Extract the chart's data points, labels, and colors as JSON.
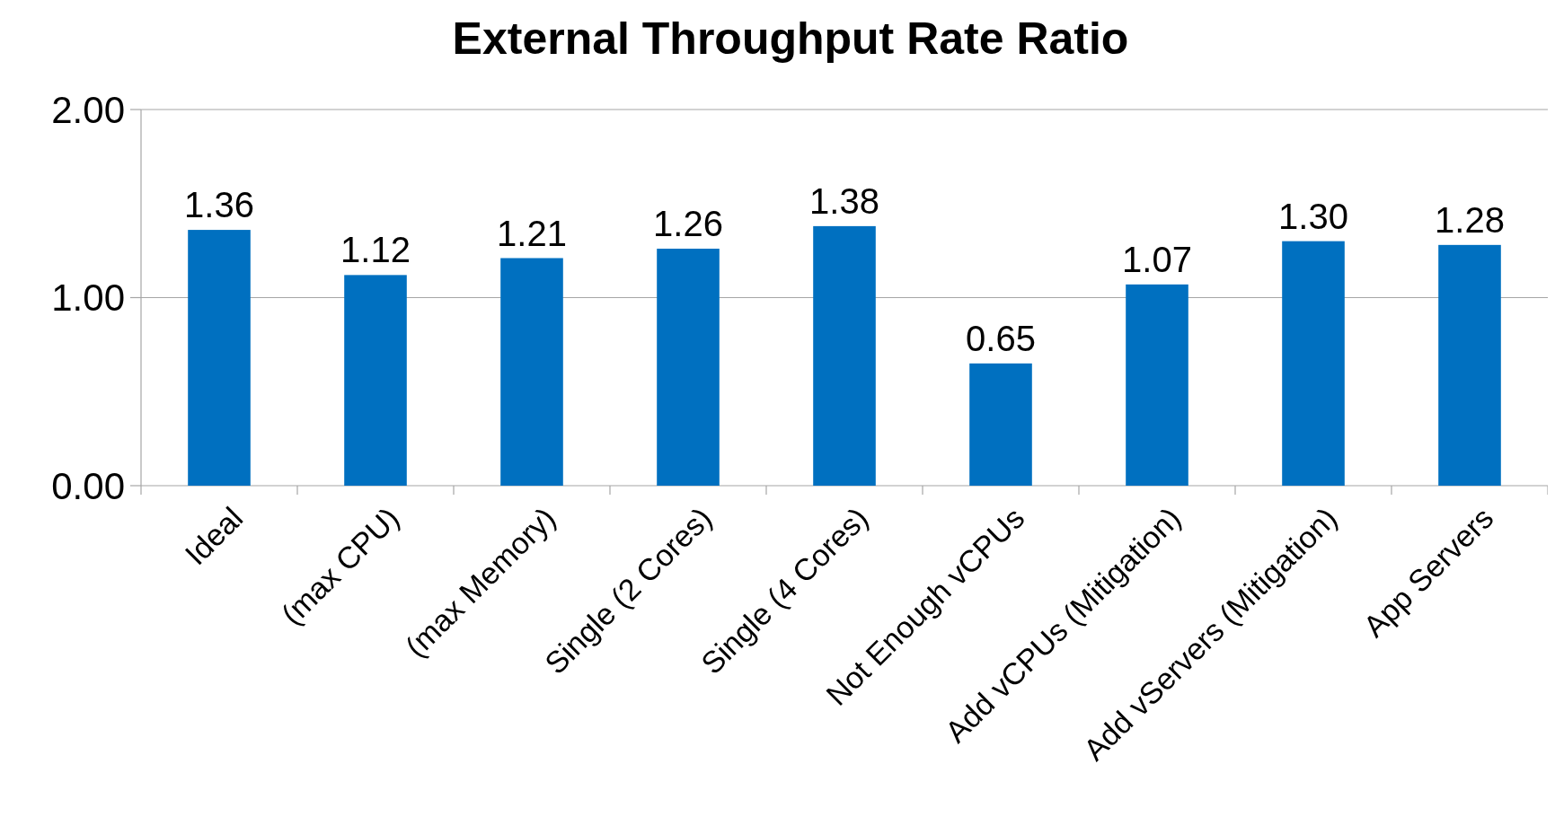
{
  "chart_data": {
    "type": "bar",
    "title": "External Throughput Rate Ratio",
    "categories": [
      "Ideal",
      "(max CPU)",
      "(max Memory)",
      "Single (2 Cores)",
      "Single (4 Cores)",
      "Not Enough vCPUs",
      "Add vCPUs (Mitigation)",
      "Add vServers (Mitigation)",
      "App Servers"
    ],
    "values": [
      1.36,
      1.12,
      1.21,
      1.26,
      1.38,
      0.65,
      1.07,
      1.3,
      1.28
    ],
    "color": "#0070c0",
    "ylim": [
      0,
      2
    ],
    "yticks": [
      {
        "value": 0,
        "label": "0.00"
      },
      {
        "value": 1,
        "label": "1.00"
      },
      {
        "value": 2,
        "label": "2.00"
      }
    ],
    "grid": "y",
    "value_labels": [
      "1.36",
      "1.12",
      "1.21",
      "1.26",
      "1.38",
      "0.65",
      "1.07",
      "1.30",
      "1.28"
    ]
  }
}
